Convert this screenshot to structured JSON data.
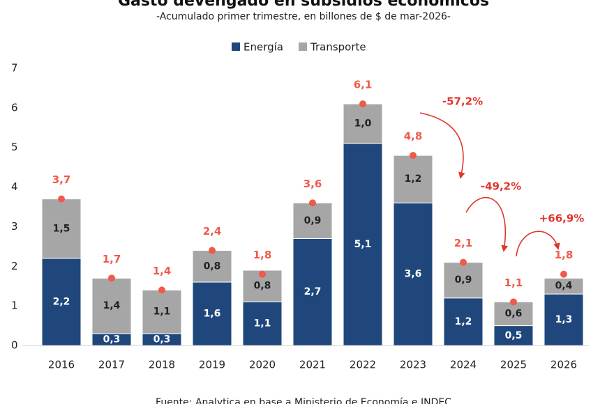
{
  "chart_data": {
    "type": "stacked-bar",
    "title": "Gasto devengado en subsidios económicos",
    "subtitle": "-Acumulado primer trimestre, en billones de $ de mar-2026-",
    "source": "Fuente: Analytica en base a Ministerio de Economía e INDEC",
    "categories": [
      "2016",
      "2017",
      "2018",
      "2019",
      "2020",
      "2021",
      "2022",
      "2023",
      "2024",
      "2025",
      "2026"
    ],
    "series": [
      {
        "name": "Energía",
        "color": "#1f477c",
        "values": [
          2.2,
          0.3,
          0.3,
          1.6,
          1.1,
          2.7,
          5.1,
          3.6,
          1.2,
          0.5,
          1.3
        ],
        "value_labels": [
          "2,2",
          "0,3",
          "0,3",
          "1,6",
          "1,1",
          "2,7",
          "5,1",
          "3,6",
          "1,2",
          "0,5",
          "1,3"
        ]
      },
      {
        "name": "Transporte",
        "color": "#a6a6a6",
        "values": [
          1.5,
          1.4,
          1.1,
          0.8,
          0.8,
          0.9,
          1.0,
          1.2,
          0.9,
          0.6,
          0.4
        ],
        "value_labels": [
          "1,5",
          "1,4",
          "1,1",
          "0,8",
          "0,8",
          "0,9",
          "1,0",
          "1,2",
          "0,9",
          "0,6",
          "0,4"
        ]
      }
    ],
    "totals": {
      "color": "#f05a4a",
      "values": [
        3.7,
        1.7,
        1.4,
        2.4,
        1.8,
        3.6,
        6.1,
        4.8,
        2.1,
        1.1,
        1.8
      ],
      "value_labels": [
        "3,7",
        "1,7",
        "1,4",
        "2,4",
        "1,8",
        "3,6",
        "6,1",
        "4,8",
        "2,1",
        "1,1",
        "1,8"
      ]
    },
    "annotations": [
      "-57,2%",
      "-49,2%",
      "+66,9%"
    ],
    "ylim": [
      0,
      7
    ],
    "yticks": [
      0,
      1,
      2,
      3,
      4,
      5,
      6,
      7
    ],
    "grid": false,
    "legend": "top"
  }
}
